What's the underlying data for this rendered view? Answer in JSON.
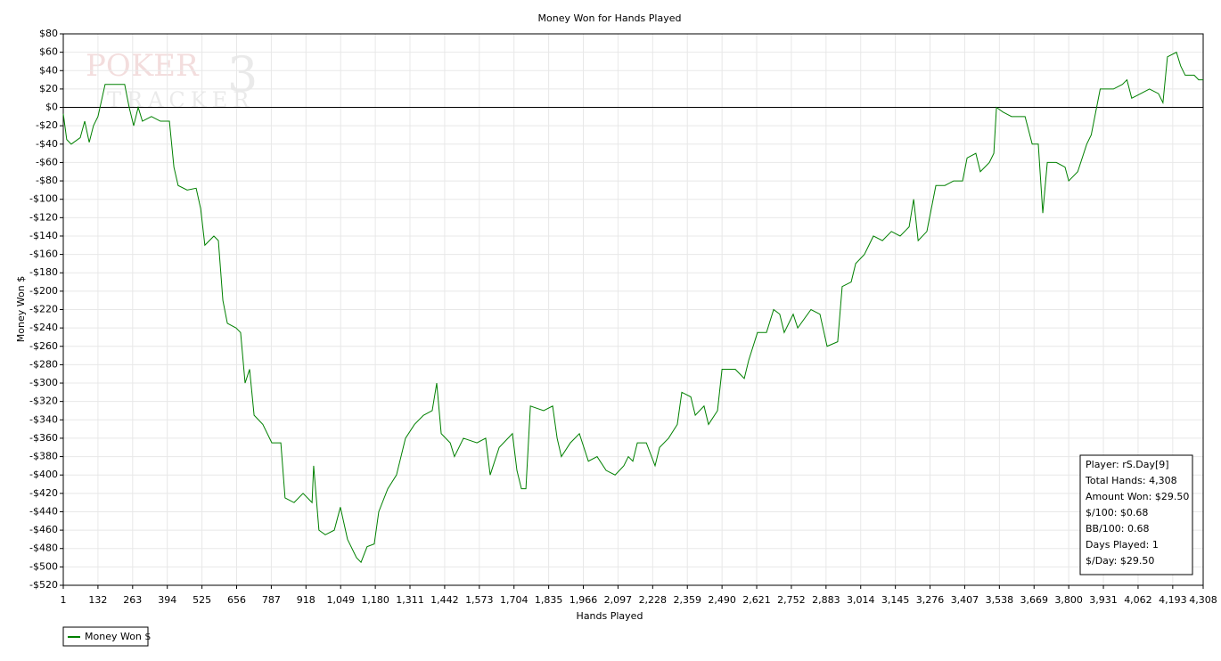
{
  "chart_data": {
    "type": "line",
    "title": "Money Won for Hands Played",
    "xlabel": "Hands Played",
    "ylabel": "Money Won $",
    "watermark": [
      "POKER",
      "TRACKER",
      "3"
    ],
    "x": [
      1,
      14,
      31,
      65,
      82,
      99,
      115,
      132,
      159,
      193,
      233,
      250,
      267,
      284,
      300,
      334,
      368,
      402,
      419,
      435,
      469,
      503,
      520,
      536,
      570,
      587,
      604,
      621,
      654,
      671,
      688,
      705,
      722,
      755,
      789,
      823,
      839,
      873,
      907,
      941,
      947,
      967,
      991,
      1025,
      1048,
      1075,
      1109,
      1126,
      1149,
      1176,
      1193,
      1227,
      1260,
      1294,
      1328,
      1362,
      1395,
      1412,
      1429,
      1463,
      1479,
      1513,
      1564,
      1597,
      1614,
      1648,
      1698,
      1715,
      1732,
      1749,
      1766,
      1816,
      1850,
      1867,
      1883,
      1917,
      1951,
      1985,
      2018,
      2052,
      2086,
      2119,
      2136,
      2153,
      2170,
      2204,
      2237,
      2254,
      2288,
      2321,
      2338,
      2372,
      2389,
      2422,
      2439,
      2473,
      2490,
      2540,
      2574,
      2591,
      2624,
      2658,
      2685,
      2708,
      2725,
      2759,
      2776,
      2826,
      2860,
      2887,
      2927,
      2944,
      2978,
      2995,
      3028,
      3062,
      3096,
      3130,
      3163,
      3197,
      3214,
      3231,
      3264,
      3281,
      3298,
      3332,
      3365,
      3399,
      3416,
      3449,
      3466,
      3500,
      3517,
      3527,
      3551,
      3584,
      3635,
      3662,
      3685,
      3702,
      3719,
      3753,
      3786,
      3800,
      3834,
      3868,
      3885,
      3919,
      3969,
      4003,
      4020,
      4038,
      4072,
      4105,
      4139,
      4156,
      4173,
      4207,
      4223,
      4240,
      4274,
      4291,
      4308
    ],
    "series": [
      {
        "name": "Money Won $",
        "color": "#008000",
        "values": [
          -7,
          -35,
          -40,
          -33,
          -15,
          -38,
          -20,
          -10,
          25,
          25,
          25,
          0,
          -20,
          0,
          -15,
          -10,
          -15,
          -15,
          -65,
          -85,
          -90,
          -88,
          -110,
          -150,
          -140,
          -145,
          -210,
          -235,
          -240,
          -245,
          -300,
          -285,
          -335,
          -345,
          -365,
          -365,
          -425,
          -430,
          -420,
          -430,
          -390,
          -460,
          -465,
          -460,
          -435,
          -470,
          -490,
          -495,
          -478,
          -475,
          -440,
          -415,
          -400,
          -360,
          -345,
          -335,
          -330,
          -300,
          -355,
          -365,
          -380,
          -360,
          -365,
          -360,
          -400,
          -370,
          -355,
          -395,
          -415,
          -415,
          -325,
          -330,
          -325,
          -360,
          -380,
          -365,
          -355,
          -385,
          -380,
          -395,
          -400,
          -390,
          -380,
          -385,
          -365,
          -365,
          -390,
          -370,
          -360,
          -345,
          -310,
          -315,
          -335,
          -325,
          -345,
          -330,
          -285,
          -285,
          -295,
          -275,
          -245,
          -245,
          -220,
          -225,
          -245,
          -225,
          -240,
          -220,
          -225,
          -260,
          -255,
          -195,
          -190,
          -170,
          -160,
          -140,
          -145,
          -135,
          -140,
          -130,
          -100,
          -145,
          -135,
          -110,
          -85,
          -85,
          -80,
          -80,
          -55,
          -50,
          -70,
          -60,
          -50,
          0,
          -5,
          -10,
          -10,
          -40,
          -40,
          -115,
          -60,
          -60,
          -65,
          -80,
          -70,
          -40,
          -30,
          20,
          20,
          25,
          30,
          10,
          15,
          20,
          15,
          5,
          55,
          60,
          45,
          35,
          35,
          30,
          30
        ]
      }
    ],
    "xlim": [
      1,
      4308
    ],
    "xticks": [
      1,
      132,
      263,
      394,
      525,
      656,
      787,
      918,
      {
        "value": 1049,
        "label": "1,049"
      },
      {
        "value": 1180,
        "label": "1,180"
      },
      {
        "value": 1311,
        "label": "1,311"
      },
      {
        "value": 1442,
        "label": "1,442"
      },
      {
        "value": 1573,
        "label": "1,573"
      },
      {
        "value": 1704,
        "label": "1,704"
      },
      {
        "value": 1835,
        "label": "1,835"
      },
      {
        "value": 1966,
        "label": "1,966"
      },
      {
        "value": 2097,
        "label": "2,097"
      },
      {
        "value": 2228,
        "label": "2,228"
      },
      {
        "value": 2359,
        "label": "2,359"
      },
      {
        "value": 2490,
        "label": "2,490"
      },
      {
        "value": 2621,
        "label": "2,621"
      },
      {
        "value": 2752,
        "label": "2,752"
      },
      {
        "value": 2883,
        "label": "2,883"
      },
      {
        "value": 3014,
        "label": "3,014"
      },
      {
        "value": 3145,
        "label": "3,145"
      },
      {
        "value": 3276,
        "label": "3,276"
      },
      {
        "value": 3407,
        "label": "3,407"
      },
      {
        "value": 3538,
        "label": "3,538"
      },
      {
        "value": 3669,
        "label": "3,669"
      },
      {
        "value": 3800,
        "label": "3,800"
      },
      {
        "value": 3931,
        "label": "3,931"
      },
      {
        "value": 4062,
        "label": "4,062"
      },
      {
        "value": 4193,
        "label": "4,193"
      },
      {
        "value": 4308,
        "label": "4,308"
      }
    ],
    "ylim": [
      -520,
      80
    ],
    "yticks": [
      {
        "value": 80,
        "label": "$80"
      },
      {
        "value": 60,
        "label": "$60"
      },
      {
        "value": 40,
        "label": "$40"
      },
      {
        "value": 20,
        "label": "$20"
      },
      {
        "value": 0,
        "label": "$0"
      },
      {
        "value": -20,
        "label": "-$20"
      },
      {
        "value": -40,
        "label": "-$40"
      },
      {
        "value": -60,
        "label": "-$60"
      },
      {
        "value": -80,
        "label": "-$80"
      },
      {
        "value": -100,
        "label": "-$100"
      },
      {
        "value": -120,
        "label": "-$120"
      },
      {
        "value": -140,
        "label": "-$140"
      },
      {
        "value": -160,
        "label": "-$160"
      },
      {
        "value": -180,
        "label": "-$180"
      },
      {
        "value": -200,
        "label": "-$200"
      },
      {
        "value": -220,
        "label": "-$220"
      },
      {
        "value": -240,
        "label": "-$240"
      },
      {
        "value": -260,
        "label": "-$260"
      },
      {
        "value": -280,
        "label": "-$280"
      },
      {
        "value": -300,
        "label": "-$300"
      },
      {
        "value": -320,
        "label": "-$320"
      },
      {
        "value": -340,
        "label": "-$340"
      },
      {
        "value": -360,
        "label": "-$360"
      },
      {
        "value": -380,
        "label": "-$380"
      },
      {
        "value": -400,
        "label": "-$400"
      },
      {
        "value": -420,
        "label": "-$420"
      },
      {
        "value": -440,
        "label": "-$440"
      },
      {
        "value": -460,
        "label": "-$460"
      },
      {
        "value": -480,
        "label": "-$480"
      },
      {
        "value": -500,
        "label": "-$500"
      },
      {
        "value": -520,
        "label": "-$520"
      }
    ],
    "grid": true,
    "zero_line": true,
    "stats": [
      "Player: rS.Day[9]",
      "Total Hands: 4,308",
      "Amount Won: $29.50",
      "$/100: $0.68",
      "BB/100: 0.68",
      "Days Played: 1",
      "$/Day: $29.50"
    ]
  }
}
